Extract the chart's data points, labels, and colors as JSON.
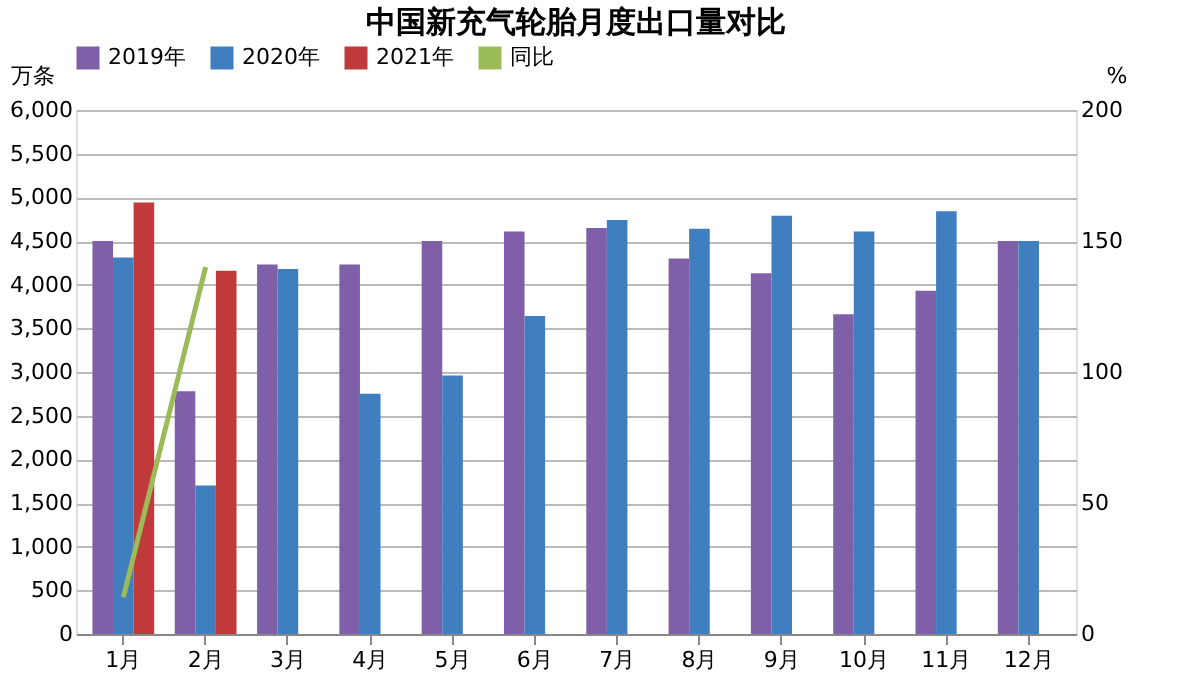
{
  "chart_data": {
    "type": "bar",
    "title": "中国新充气轮胎月度出口量对比",
    "ylabel": "万条",
    "y2label": "%",
    "categories": [
      "1月",
      "2月",
      "3月",
      "4月",
      "5月",
      "6月",
      "7月",
      "8月",
      "9月",
      "10月",
      "11月",
      "12月"
    ],
    "series": [
      {
        "name": "2019年",
        "color": "#7f5fa8",
        "values": [
          4500,
          2780,
          4230,
          4230,
          4500,
          4610,
          4650,
          4300,
          4130,
          3660,
          3930,
          4500
        ]
      },
      {
        "name": "2020年",
        "color": "#3f7fc0",
        "values": [
          4310,
          1700,
          4180,
          2750,
          2960,
          3640,
          4740,
          4640,
          4790,
          4610,
          4840,
          4500
        ]
      },
      {
        "name": "2021年",
        "color": "#c0393b",
        "values": [
          4940,
          4160,
          null,
          null,
          null,
          null,
          null,
          null,
          null,
          null,
          null,
          null
        ]
      },
      {
        "name": "同比",
        "color": "#9bbb59",
        "type": "line",
        "axis": "y2",
        "values": [
          14,
          140,
          null,
          null,
          null,
          null,
          null,
          null,
          null,
          null,
          null,
          null
        ]
      }
    ],
    "ylim": [
      0,
      6000
    ],
    "yticks": [
      0,
      500,
      {
        "value": 1000,
        "label": "1,000"
      },
      {
        "value": 1500,
        "label": "1,500"
      },
      {
        "value": 2000,
        "label": "2,000"
      },
      {
        "value": 2500,
        "label": "2,500"
      },
      {
        "value": 3000,
        "label": "3,000"
      },
      {
        "value": 3500,
        "label": "3,500"
      },
      {
        "value": 4000,
        "label": "4,000"
      },
      {
        "value": 4500,
        "label": "4,500"
      },
      {
        "value": 5000,
        "label": "5,000"
      },
      {
        "value": 5500,
        "label": "5,500"
      },
      {
        "value": 6000,
        "label": "6,000"
      }
    ],
    "y2lim": [
      0,
      200
    ],
    "y2ticks": [
      0,
      50,
      100,
      150,
      200
    ],
    "grid": "y",
    "legend": "top",
    "marker": "none"
  }
}
